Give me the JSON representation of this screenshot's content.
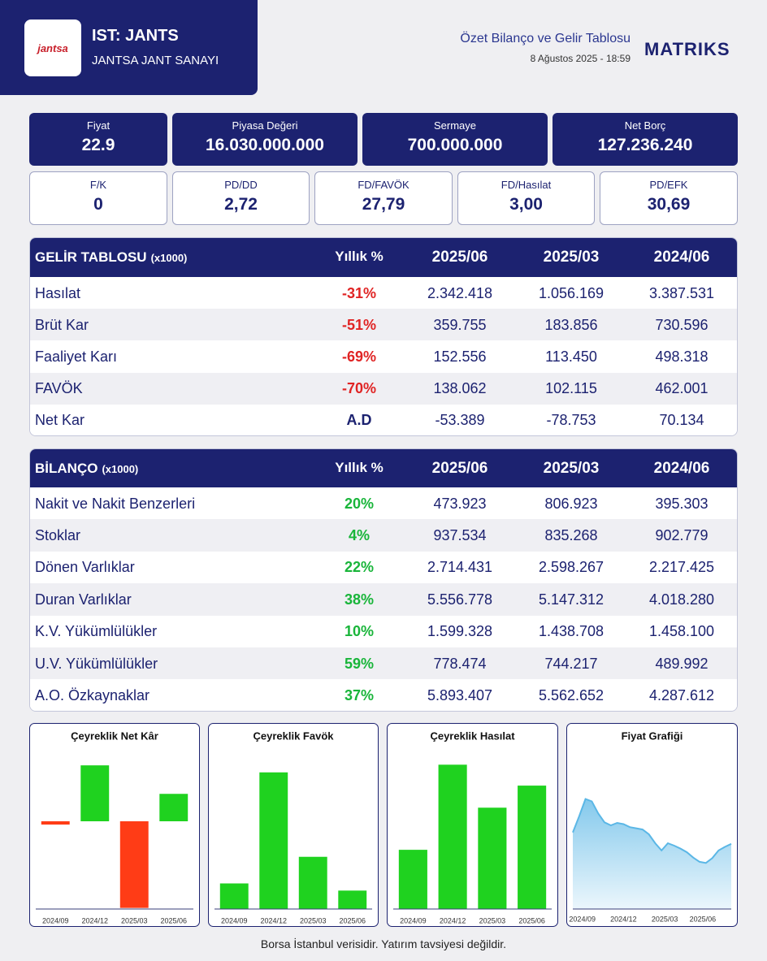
{
  "header": {
    "logo": "jantsa",
    "ticker": "IST: JANTS",
    "company": "JANTSA JANT SANAYI",
    "report_title": "Özet Bilanço ve Gelir Tablosu",
    "date": "8 Ağustos 2025 - 18:59",
    "brand": "MATRIKS"
  },
  "metrics_primary": [
    {
      "label": "Fiyat",
      "value": "22.9"
    },
    {
      "label": "Piyasa Değeri",
      "value": "16.030.000.000"
    },
    {
      "label": "Sermaye",
      "value": "700.000.000"
    },
    {
      "label": "Net Borç",
      "value": "127.236.240"
    }
  ],
  "metrics_ratio": [
    {
      "label": "F/K",
      "value": "0"
    },
    {
      "label": "PD/DD",
      "value": "2,72"
    },
    {
      "label": "FD/FAVÖK",
      "value": "27,79"
    },
    {
      "label": "FD/Hasılat",
      "value": "3,00"
    },
    {
      "label": "PD/EFK",
      "value": "30,69"
    }
  ],
  "income_table": {
    "title": "GELİR TABLOSU",
    "unit": "(x1000)",
    "columns": [
      "Yıllık %",
      "2025/06",
      "2025/03",
      "2024/06"
    ],
    "rows": [
      [
        "Hasılat",
        "-31%",
        "2.342.418",
        "1.056.169",
        "3.387.531"
      ],
      [
        "Brüt Kar",
        "-51%",
        "359.755",
        "183.856",
        "730.596"
      ],
      [
        "Faaliyet Karı",
        "-69%",
        "152.556",
        "113.450",
        "498.318"
      ],
      [
        "FAVÖK",
        "-70%",
        "138.062",
        "102.115",
        "462.001"
      ],
      [
        "Net Kar",
        "A.D",
        "-53.389",
        "-78.753",
        "70.134"
      ]
    ]
  },
  "balance_table": {
    "title": "BİLANÇO",
    "unit": "(x1000)",
    "columns": [
      "Yıllık %",
      "2025/06",
      "2025/03",
      "2024/06"
    ],
    "rows": [
      [
        "Nakit ve Nakit Benzerleri",
        "20%",
        "473.923",
        "806.923",
        "395.303"
      ],
      [
        "Stoklar",
        "4%",
        "937.534",
        "835.268",
        "902.779"
      ],
      [
        "Dönen Varlıklar",
        "22%",
        "2.714.431",
        "2.598.267",
        "2.217.425"
      ],
      [
        "Duran Varlıklar",
        "38%",
        "5.556.778",
        "5.147.312",
        "4.018.280"
      ],
      [
        "K.V. Yükümlülükler",
        "10%",
        "1.599.328",
        "1.438.708",
        "1.458.100"
      ],
      [
        "U.V. Yükümlülükler",
        "59%",
        "778.474",
        "744.217",
        "489.992"
      ],
      [
        "A.O. Özkaynaklar",
        "37%",
        "5.893.407",
        "5.562.652",
        "4.287.612"
      ]
    ]
  },
  "chart_data": [
    {
      "type": "bar",
      "title": "Çeyreklik Net Kâr",
      "categories": [
        "2024/09",
        "2024/12",
        "2025/03",
        "2025/06"
      ],
      "values": [
        -3,
        51,
        -79,
        25
      ],
      "ylim": [
        -80,
        60
      ],
      "color": "#1fd21f",
      "negative_color": "#ff3c16"
    },
    {
      "type": "bar",
      "title": "Çeyreklik Favök",
      "categories": [
        "2024/09",
        "2024/12",
        "2025/03",
        "2025/06"
      ],
      "values": [
        50,
        267,
        102,
        36
      ],
      "ylim": [
        0,
        300
      ],
      "color": "#1fd21f",
      "negative_color": "#ff3c16"
    },
    {
      "type": "bar",
      "title": "Çeyreklik Hasılat",
      "categories": [
        "2024/09",
        "2024/12",
        "2025/03",
        "2025/06"
      ],
      "values": [
        617,
        1504,
        1056,
        1286
      ],
      "ylim": [
        0,
        1600
      ],
      "color": "#1fd21f",
      "negative_color": "#ff3c16"
    },
    {
      "type": "area",
      "title": "Fiyat Grafiği",
      "values": [
        24.8,
        27.5,
        30.4,
        30.0,
        28.0,
        26.5,
        26.0,
        26.4,
        26.2,
        25.7,
        25.5,
        25.3,
        24.5,
        23.0,
        21.8,
        23.0,
        22.6,
        22.1,
        21.5,
        20.6,
        19.9,
        19.7,
        20.5,
        21.8,
        22.4,
        22.9
      ],
      "xlim": [
        0,
        25
      ],
      "ylim": [
        12,
        37
      ],
      "xticks": [
        {
          "value": 1.5,
          "label": "2024/09"
        },
        {
          "value": 8,
          "label": "2024/12"
        },
        {
          "value": 14.5,
          "label": "2025/03"
        },
        {
          "value": 20.5,
          "label": "2025/06"
        }
      ],
      "color": "#5bb7e6"
    }
  ],
  "footer": "Borsa İstanbul verisidir. Yatırım tavsiyesi değildir."
}
